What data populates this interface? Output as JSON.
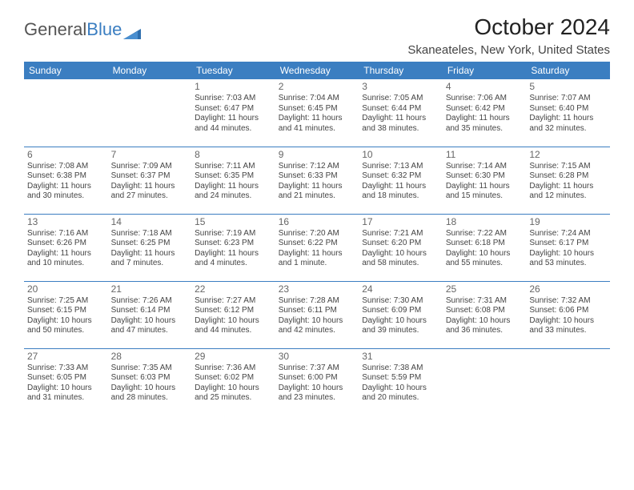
{
  "logo": {
    "text1": "General",
    "text2": "Blue"
  },
  "title": "October 2024",
  "location": "Skaneateles, New York, United States",
  "colors": {
    "header_bg": "#3b7ec1",
    "header_text": "#ffffff",
    "border": "#3b7ec1",
    "body_text": "#444444",
    "daynum": "#666666",
    "page_bg": "#ffffff"
  },
  "days_of_week": [
    "Sunday",
    "Monday",
    "Tuesday",
    "Wednesday",
    "Thursday",
    "Friday",
    "Saturday"
  ],
  "weeks": [
    [
      null,
      null,
      {
        "n": "1",
        "sr": "Sunrise: 7:03 AM",
        "ss": "Sunset: 6:47 PM",
        "dl": "Daylight: 11 hours and 44 minutes."
      },
      {
        "n": "2",
        "sr": "Sunrise: 7:04 AM",
        "ss": "Sunset: 6:45 PM",
        "dl": "Daylight: 11 hours and 41 minutes."
      },
      {
        "n": "3",
        "sr": "Sunrise: 7:05 AM",
        "ss": "Sunset: 6:44 PM",
        "dl": "Daylight: 11 hours and 38 minutes."
      },
      {
        "n": "4",
        "sr": "Sunrise: 7:06 AM",
        "ss": "Sunset: 6:42 PM",
        "dl": "Daylight: 11 hours and 35 minutes."
      },
      {
        "n": "5",
        "sr": "Sunrise: 7:07 AM",
        "ss": "Sunset: 6:40 PM",
        "dl": "Daylight: 11 hours and 32 minutes."
      }
    ],
    [
      {
        "n": "6",
        "sr": "Sunrise: 7:08 AM",
        "ss": "Sunset: 6:38 PM",
        "dl": "Daylight: 11 hours and 30 minutes."
      },
      {
        "n": "7",
        "sr": "Sunrise: 7:09 AM",
        "ss": "Sunset: 6:37 PM",
        "dl": "Daylight: 11 hours and 27 minutes."
      },
      {
        "n": "8",
        "sr": "Sunrise: 7:11 AM",
        "ss": "Sunset: 6:35 PM",
        "dl": "Daylight: 11 hours and 24 minutes."
      },
      {
        "n": "9",
        "sr": "Sunrise: 7:12 AM",
        "ss": "Sunset: 6:33 PM",
        "dl": "Daylight: 11 hours and 21 minutes."
      },
      {
        "n": "10",
        "sr": "Sunrise: 7:13 AM",
        "ss": "Sunset: 6:32 PM",
        "dl": "Daylight: 11 hours and 18 minutes."
      },
      {
        "n": "11",
        "sr": "Sunrise: 7:14 AM",
        "ss": "Sunset: 6:30 PM",
        "dl": "Daylight: 11 hours and 15 minutes."
      },
      {
        "n": "12",
        "sr": "Sunrise: 7:15 AM",
        "ss": "Sunset: 6:28 PM",
        "dl": "Daylight: 11 hours and 12 minutes."
      }
    ],
    [
      {
        "n": "13",
        "sr": "Sunrise: 7:16 AM",
        "ss": "Sunset: 6:26 PM",
        "dl": "Daylight: 11 hours and 10 minutes."
      },
      {
        "n": "14",
        "sr": "Sunrise: 7:18 AM",
        "ss": "Sunset: 6:25 PM",
        "dl": "Daylight: 11 hours and 7 minutes."
      },
      {
        "n": "15",
        "sr": "Sunrise: 7:19 AM",
        "ss": "Sunset: 6:23 PM",
        "dl": "Daylight: 11 hours and 4 minutes."
      },
      {
        "n": "16",
        "sr": "Sunrise: 7:20 AM",
        "ss": "Sunset: 6:22 PM",
        "dl": "Daylight: 11 hours and 1 minute."
      },
      {
        "n": "17",
        "sr": "Sunrise: 7:21 AM",
        "ss": "Sunset: 6:20 PM",
        "dl": "Daylight: 10 hours and 58 minutes."
      },
      {
        "n": "18",
        "sr": "Sunrise: 7:22 AM",
        "ss": "Sunset: 6:18 PM",
        "dl": "Daylight: 10 hours and 55 minutes."
      },
      {
        "n": "19",
        "sr": "Sunrise: 7:24 AM",
        "ss": "Sunset: 6:17 PM",
        "dl": "Daylight: 10 hours and 53 minutes."
      }
    ],
    [
      {
        "n": "20",
        "sr": "Sunrise: 7:25 AM",
        "ss": "Sunset: 6:15 PM",
        "dl": "Daylight: 10 hours and 50 minutes."
      },
      {
        "n": "21",
        "sr": "Sunrise: 7:26 AM",
        "ss": "Sunset: 6:14 PM",
        "dl": "Daylight: 10 hours and 47 minutes."
      },
      {
        "n": "22",
        "sr": "Sunrise: 7:27 AM",
        "ss": "Sunset: 6:12 PM",
        "dl": "Daylight: 10 hours and 44 minutes."
      },
      {
        "n": "23",
        "sr": "Sunrise: 7:28 AM",
        "ss": "Sunset: 6:11 PM",
        "dl": "Daylight: 10 hours and 42 minutes."
      },
      {
        "n": "24",
        "sr": "Sunrise: 7:30 AM",
        "ss": "Sunset: 6:09 PM",
        "dl": "Daylight: 10 hours and 39 minutes."
      },
      {
        "n": "25",
        "sr": "Sunrise: 7:31 AM",
        "ss": "Sunset: 6:08 PM",
        "dl": "Daylight: 10 hours and 36 minutes."
      },
      {
        "n": "26",
        "sr": "Sunrise: 7:32 AM",
        "ss": "Sunset: 6:06 PM",
        "dl": "Daylight: 10 hours and 33 minutes."
      }
    ],
    [
      {
        "n": "27",
        "sr": "Sunrise: 7:33 AM",
        "ss": "Sunset: 6:05 PM",
        "dl": "Daylight: 10 hours and 31 minutes."
      },
      {
        "n": "28",
        "sr": "Sunrise: 7:35 AM",
        "ss": "Sunset: 6:03 PM",
        "dl": "Daylight: 10 hours and 28 minutes."
      },
      {
        "n": "29",
        "sr": "Sunrise: 7:36 AM",
        "ss": "Sunset: 6:02 PM",
        "dl": "Daylight: 10 hours and 25 minutes."
      },
      {
        "n": "30",
        "sr": "Sunrise: 7:37 AM",
        "ss": "Sunset: 6:00 PM",
        "dl": "Daylight: 10 hours and 23 minutes."
      },
      {
        "n": "31",
        "sr": "Sunrise: 7:38 AM",
        "ss": "Sunset: 5:59 PM",
        "dl": "Daylight: 10 hours and 20 minutes."
      },
      null,
      null
    ]
  ]
}
